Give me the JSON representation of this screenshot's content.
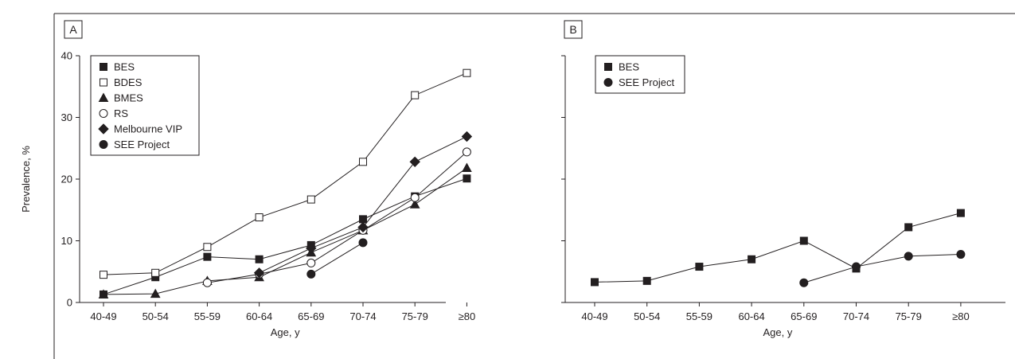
{
  "colors": {
    "ink": "#231f20",
    "background": "#ffffff"
  },
  "chart_data": [
    {
      "panel_label": "A",
      "type": "line",
      "categories": [
        "40-49",
        "50-54",
        "55-59",
        "60-64",
        "65-69",
        "70-74",
        "75-79",
        "≥80"
      ],
      "xlabel": "Age, y",
      "ylabel": "Prevalence, %",
      "ylim": [
        0,
        40
      ],
      "yticks": [
        0,
        10,
        20,
        30,
        40
      ],
      "grid": false,
      "legend_position": "top-left",
      "series": [
        {
          "name": "BES",
          "marker": "square-filled",
          "values": [
            1.3,
            4.1,
            7.4,
            7.0,
            9.3,
            13.5,
            17.2,
            20.1
          ]
        },
        {
          "name": "BDES",
          "marker": "square-open",
          "values": [
            4.5,
            4.8,
            9.0,
            13.8,
            16.7,
            22.8,
            33.6,
            37.2
          ]
        },
        {
          "name": "BMES",
          "marker": "triangle-filled",
          "values": [
            1.3,
            1.4,
            3.5,
            4.1,
            8.1,
            11.7,
            15.9,
            21.8
          ]
        },
        {
          "name": "RS",
          "marker": "circle-open",
          "values": [
            null,
            null,
            3.2,
            4.6,
            6.4,
            11.7,
            17.0,
            24.4
          ]
        },
        {
          "name": "Melbourne VIP",
          "marker": "diamond-filled",
          "values": [
            null,
            null,
            null,
            4.8,
            8.8,
            12.2,
            22.8,
            26.9
          ]
        },
        {
          "name": "SEE Project",
          "marker": "circle-filled",
          "values": [
            null,
            null,
            null,
            null,
            4.6,
            9.7,
            null,
            null
          ]
        }
      ]
    },
    {
      "panel_label": "B",
      "type": "line",
      "categories": [
        "40-49",
        "50-54",
        "55-59",
        "60-64",
        "65-69",
        "70-74",
        "75-79",
        "≥80"
      ],
      "xlabel": "Age, y",
      "ylabel": "",
      "ylim": [
        0,
        40
      ],
      "yticks": [
        0,
        10,
        20,
        30,
        40
      ],
      "grid": false,
      "legend_position": "top-left",
      "series": [
        {
          "name": "BES",
          "marker": "square-filled",
          "values": [
            3.3,
            3.5,
            5.8,
            7.0,
            10.0,
            5.5,
            12.2,
            14.5
          ]
        },
        {
          "name": "SEE Project",
          "marker": "circle-filled",
          "values": [
            null,
            null,
            null,
            null,
            3.2,
            5.8,
            7.5,
            7.8
          ]
        }
      ]
    }
  ]
}
